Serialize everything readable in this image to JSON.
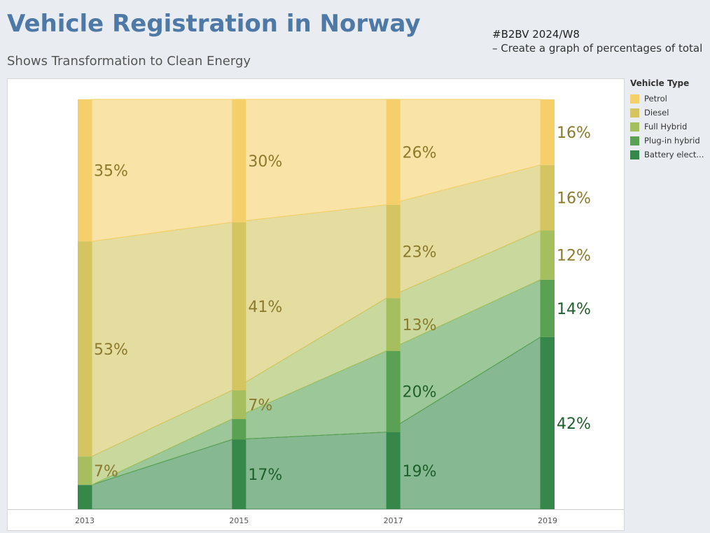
{
  "header": {
    "title": "Vehicle Registration in Norway",
    "subtitle": "Shows Transformation to Clean Energy",
    "note_line1": "#B2BV 2024/W8",
    "note_line2": "– Create a graph of percentages of total"
  },
  "legend": {
    "title": "Vehicle Type",
    "items": [
      {
        "label": "Petrol",
        "color": "#f5d06a"
      },
      {
        "label": "Diesel",
        "color": "#d4c560"
      },
      {
        "label": "Full Hybrid",
        "color": "#a5bf5e"
      },
      {
        "label": "Plug-in hybrid",
        "color": "#5aa153"
      },
      {
        "label": "Battery elect...",
        "color": "#35884a"
      }
    ]
  },
  "chart_data": {
    "type": "area",
    "stacked": true,
    "percent_of_total": true,
    "categories": [
      "2013",
      "2015",
      "2017",
      "2019"
    ],
    "series": [
      {
        "name": "Battery elect...",
        "color": "#35884a",
        "values": [
          6,
          17,
          19,
          42
        ],
        "labels": [
          "",
          "17%",
          "19%",
          "42%"
        ]
      },
      {
        "name": "Plug-in hybrid",
        "color": "#5aa153",
        "values": [
          0,
          5,
          20,
          14
        ],
        "labels": [
          "",
          "",
          "20%",
          "14%"
        ]
      },
      {
        "name": "Full Hybrid",
        "color": "#a5bf5e",
        "values": [
          7,
          7,
          13,
          12
        ],
        "labels": [
          "7%",
          "7%",
          "13%",
          "12%"
        ]
      },
      {
        "name": "Diesel",
        "color": "#d4c560",
        "values": [
          53,
          41,
          23,
          16
        ],
        "labels": [
          "53%",
          "41%",
          "23%",
          "16%"
        ]
      },
      {
        "name": "Petrol",
        "color": "#f5d06a",
        "values": [
          35,
          30,
          26,
          16
        ],
        "labels": [
          "35%",
          "30%",
          "26%",
          "16%"
        ]
      }
    ],
    "ylim": [
      0,
      100
    ],
    "grid": false,
    "legend_position": "right"
  }
}
